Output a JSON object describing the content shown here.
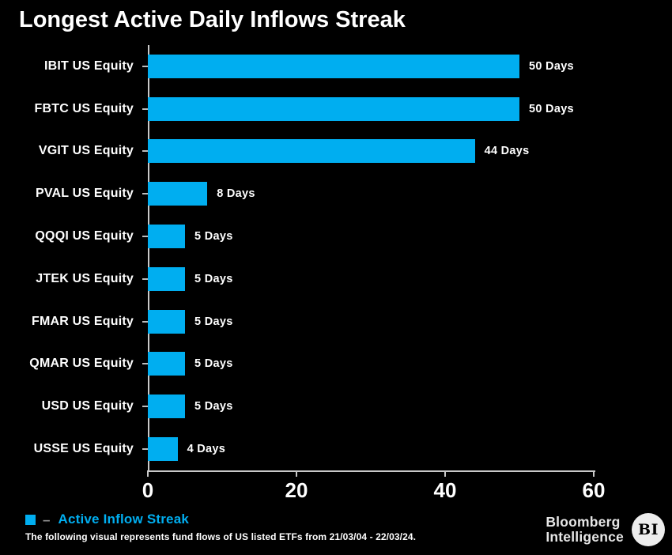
{
  "title": "Longest Active Daily Inflows Streak",
  "chart_data": {
    "type": "bar",
    "orientation": "horizontal",
    "title": "Longest Active Daily Inflows Streak",
    "categories": [
      "IBIT US Equity",
      "FBTC US Equity",
      "VGIT US Equity",
      "PVAL US Equity",
      "QQQI US Equity",
      "JTEK US Equity",
      "FMAR US Equity",
      "QMAR US Equity",
      "USD US Equity",
      "USSE US Equity"
    ],
    "values": [
      50,
      50,
      44,
      8,
      5,
      5,
      5,
      5,
      5,
      4
    ],
    "value_labels": [
      "50 Days",
      "50 Days",
      "44 Days",
      "8 Days",
      "5 Days",
      "5 Days",
      "5 Days",
      "5 Days",
      "5 Days",
      "4 Days"
    ],
    "xlabel": "",
    "ylabel": "",
    "xlim": [
      0,
      60
    ],
    "xticks": [
      0,
      20,
      40,
      60
    ],
    "grid": false,
    "legend_position": "bottom-left",
    "series_name": "Active Inflow Streak",
    "bar_color": "#00AEF0",
    "background_color": "#000000"
  },
  "legend": {
    "swatch_color": "#00AEF0",
    "separator": "–",
    "label": "Active Inflow Streak"
  },
  "footer": {
    "note": "The following visual represents fund flows of US listed ETFs from 21/03/04 - 22/03/24."
  },
  "branding": {
    "line1": "Bloomberg",
    "line2": "Intelligence",
    "badge": "BI"
  },
  "colors": {
    "background": "#000000",
    "bar": "#00AEF0",
    "text": "#FFFFFF",
    "axis": "#C9C9C9",
    "legend_text": "#00AEF0",
    "legend_separator": "#8F8F8F"
  }
}
